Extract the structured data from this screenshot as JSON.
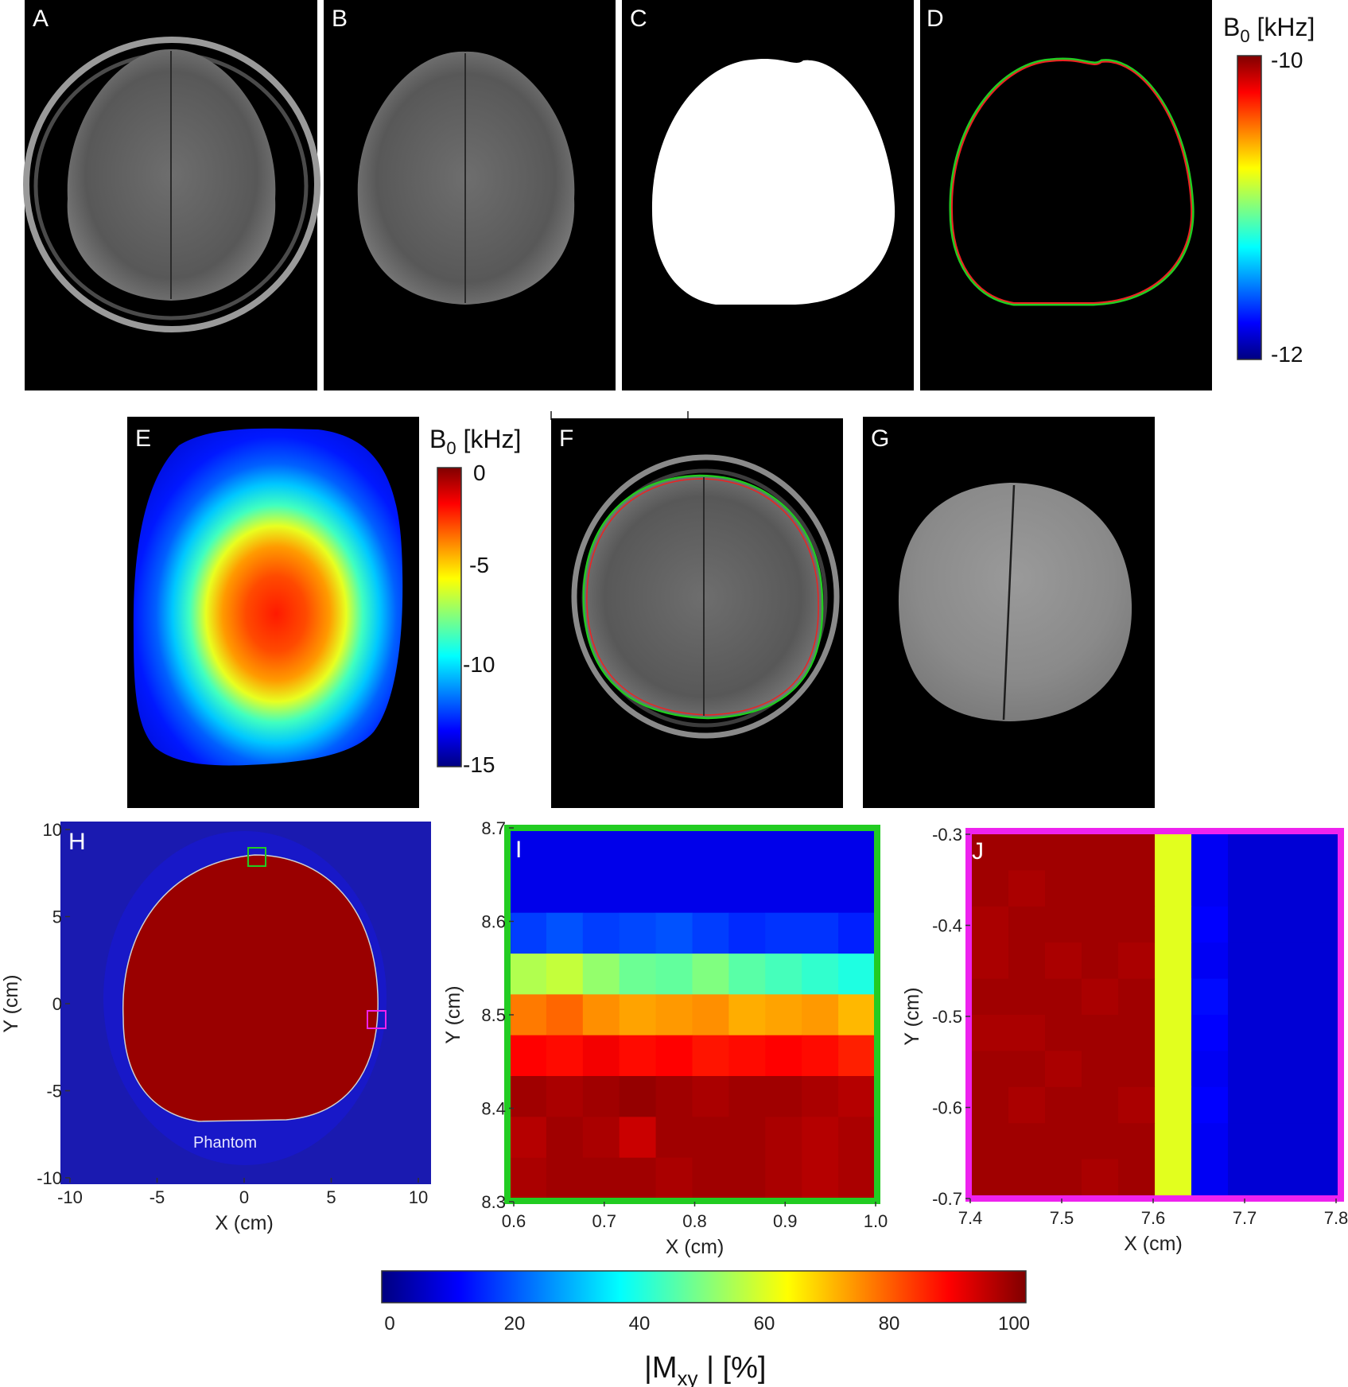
{
  "panels": {
    "A": {
      "letter": "A"
    },
    "B": {
      "letter": "B"
    },
    "C": {
      "letter": "C"
    },
    "D": {
      "letter": "D"
    },
    "E": {
      "letter": "E"
    },
    "F": {
      "letter": "F"
    },
    "G": {
      "letter": "G"
    },
    "H": {
      "letter": "H",
      "annotation": "Phantom"
    },
    "I": {
      "letter": "I"
    },
    "J": {
      "letter": "J"
    }
  },
  "colorbar_D": {
    "title_main": "B",
    "title_sub": "0",
    "title_unit": " [kHz]",
    "ticks": [
      "-10",
      "-12"
    ]
  },
  "colorbar_E": {
    "title_main": "B",
    "title_sub": "0",
    "title_unit": " [kHz]",
    "ticks": [
      "0",
      "-5",
      "-10",
      "-15"
    ]
  },
  "colorbar_Mxy": {
    "title_pre": "|M",
    "title_sub": "xy",
    "title_post": " | [%]",
    "ticks": [
      "0",
      "20",
      "40",
      "60",
      "80",
      "100"
    ]
  },
  "colors": {
    "outline_green": "#22cc22",
    "outline_red": "#ee2222",
    "roi_green": "#22cc22",
    "roi_magenta": "#ee22ee"
  },
  "chart_data": [
    {
      "panel": "H",
      "type": "heatmap",
      "xlabel": "X (cm)",
      "ylabel": "Y (cm)",
      "xlim": [
        -10.5,
        10.5
      ],
      "ylim": [
        -10.5,
        10.5
      ],
      "xticks": [
        "-10",
        "-5",
        "0",
        "5",
        "10"
      ],
      "yticks": [
        "10",
        "5",
        "0",
        "-5",
        "-10"
      ],
      "inside_value": 100,
      "outside_value": 5
    },
    {
      "panel": "I",
      "type": "heatmap",
      "xlabel": "X (cm)",
      "ylabel": "Y (cm)",
      "xlim": [
        0.6,
        1.0
      ],
      "ylim": [
        8.3,
        8.7
      ],
      "xticks": [
        "0.6",
        "0.7",
        "0.8",
        "0.9",
        "1.0"
      ],
      "yticks": [
        "8.7",
        "8.6",
        "8.5",
        "8.4",
        "8.3"
      ],
      "rows_top_to_bottom": [
        [
          10,
          10,
          10,
          10,
          10,
          10,
          10,
          10,
          10,
          10
        ],
        [
          10,
          10,
          10,
          10,
          10,
          10,
          10,
          10,
          10,
          10
        ],
        [
          18,
          20,
          18,
          19,
          20,
          18,
          16,
          17,
          17,
          15
        ],
        [
          55,
          57,
          52,
          48,
          47,
          50,
          46,
          44,
          42,
          40
        ],
        [
          76,
          78,
          74,
          72,
          73,
          74,
          71,
          72,
          73,
          70
        ],
        [
          88,
          87,
          89,
          87,
          88,
          86,
          87,
          88,
          87,
          85
        ],
        [
          97,
          96,
          97,
          98,
          97,
          96,
          97,
          97,
          96,
          95
        ],
        [
          95,
          97,
          96,
          93,
          97,
          97,
          97,
          96,
          95,
          96
        ],
        [
          96,
          97,
          97,
          97,
          96,
          97,
          97,
          96,
          95,
          96
        ]
      ]
    },
    {
      "panel": "J",
      "type": "heatmap",
      "xlabel": "X (cm)",
      "ylabel": "Y (cm)",
      "xlim": [
        7.4,
        7.8
      ],
      "ylim": [
        -0.7,
        -0.3
      ],
      "xticks": [
        "7.4",
        "7.5",
        "7.6",
        "7.7",
        "7.8"
      ],
      "yticks": [
        "-0.3",
        "-0.4",
        "-0.5",
        "-0.6",
        "-0.7"
      ],
      "rows_top_to_bottom": [
        [
          97,
          97,
          97,
          97,
          97,
          60,
          11,
          8,
          8,
          8
        ],
        [
          97,
          96,
          97,
          97,
          97,
          60,
          11,
          8,
          8,
          8
        ],
        [
          96,
          97,
          97,
          97,
          97,
          60,
          12,
          8,
          8,
          8
        ],
        [
          96,
          97,
          96,
          97,
          96,
          60,
          11,
          8,
          8,
          8
        ],
        [
          97,
          97,
          97,
          96,
          97,
          60,
          13,
          8,
          8,
          8
        ],
        [
          96,
          96,
          97,
          97,
          97,
          60,
          12,
          8,
          8,
          8
        ],
        [
          97,
          97,
          96,
          97,
          97,
          60,
          11,
          8,
          8,
          8
        ],
        [
          97,
          96,
          97,
          97,
          96,
          60,
          12,
          8,
          8,
          8
        ],
        [
          97,
          97,
          97,
          97,
          97,
          60,
          11,
          8,
          8,
          8
        ],
        [
          97,
          97,
          97,
          96,
          97,
          60,
          11,
          8,
          8,
          8
        ]
      ]
    }
  ]
}
